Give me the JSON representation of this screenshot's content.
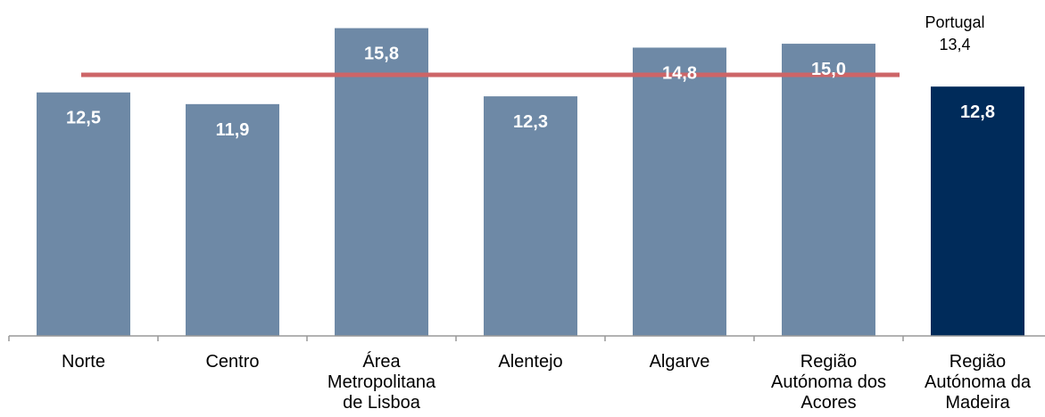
{
  "chart_data": {
    "type": "bar",
    "title": "",
    "xlabel": "",
    "ylabel": "",
    "categories": [
      [
        "Norte"
      ],
      [
        "Centro"
      ],
      [
        "Área",
        "Metropolitana",
        "de Lisboa"
      ],
      [
        "Alentejo"
      ],
      [
        "Algarve"
      ],
      [
        "Região",
        "Autónoma dos",
        "Acores"
      ],
      [
        "Região",
        "Autónoma da",
        "Madeira"
      ]
    ],
    "values": [
      12.5,
      11.9,
      15.8,
      12.3,
      14.8,
      15.0,
      12.8
    ],
    "value_labels": [
      "12,5",
      "11,9",
      "15,8",
      "12,3",
      "14,8",
      "15,0",
      "12,8"
    ],
    "highlight_index": 6,
    "ylim": [
      0,
      16.65
    ],
    "grid": false,
    "reference_line": {
      "value": 13.4,
      "label_name": "Portugal",
      "label_value": "13,4"
    },
    "colors": {
      "bar": "#6e89a6",
      "highlight": "#002b5a",
      "reference_line": "#cd6567",
      "axis": "#999999"
    }
  }
}
